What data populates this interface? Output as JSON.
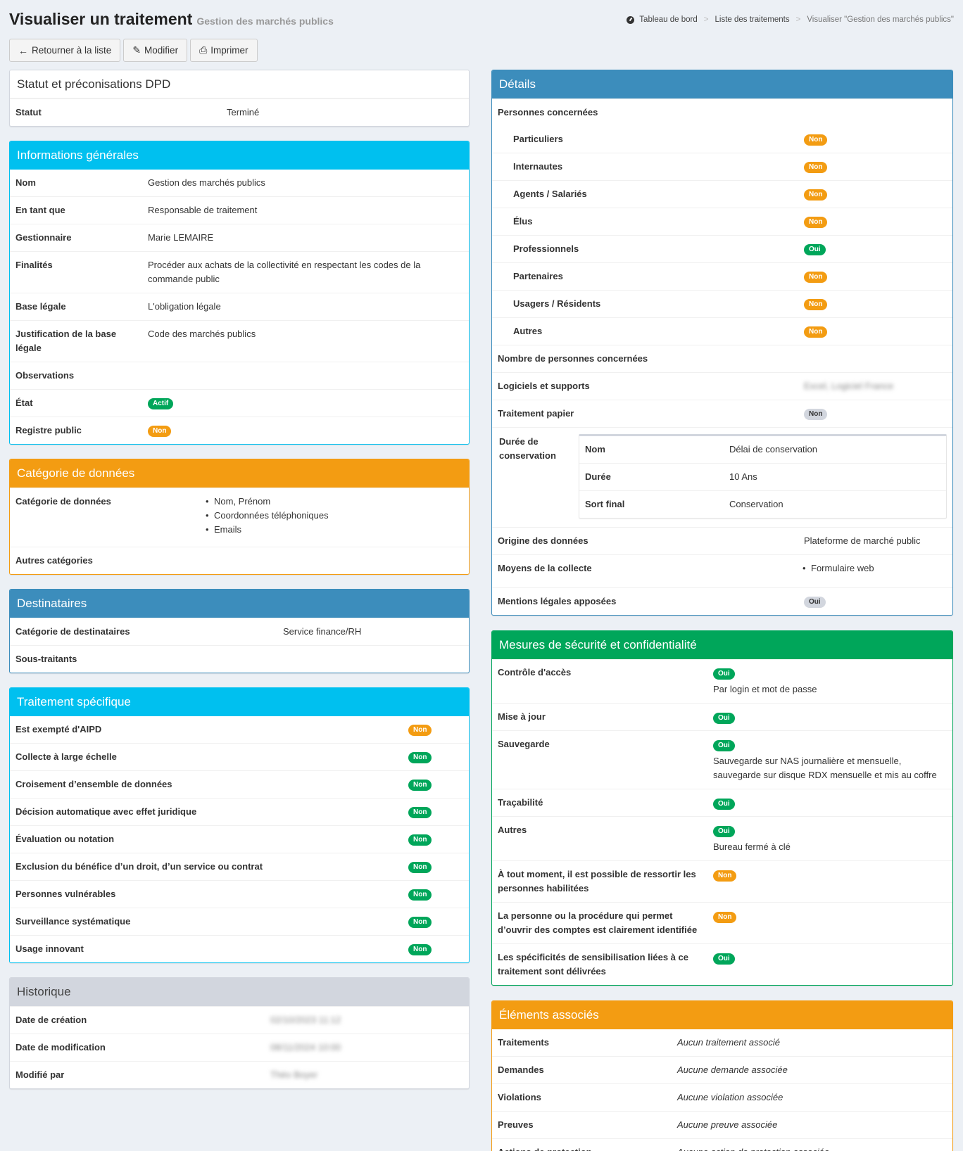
{
  "header": {
    "title": "Visualiser un traitement",
    "subtitle": "Gestion des marchés publics",
    "breadcrumb": [
      "Tableau de bord",
      "Liste des traitements",
      "Visualiser \"Gestion des marchés publics\""
    ]
  },
  "toolbar": {
    "back": "Retourner à la liste",
    "edit": "Modifier",
    "print": "Imprimer"
  },
  "status_box": {
    "title": "Statut et préconisations DPD",
    "status_label": "Statut",
    "status_value": "Terminé"
  },
  "general": {
    "title": "Informations générales",
    "rows": [
      {
        "label": "Nom",
        "value": "Gestion des marchés publics"
      },
      {
        "label": "En tant que",
        "value": "Responsable de traitement"
      },
      {
        "label": "Gestionnaire",
        "value": "Marie LEMAIRE"
      },
      {
        "label": "Finalités",
        "value": "Procéder aux achats de la collectivité en respectant les codes de la commande public"
      },
      {
        "label": "Base légale",
        "value": "L'obligation légale"
      },
      {
        "label": "Justification de la base légale",
        "value": "Code des marchés publics"
      },
      {
        "label": "Observations",
        "value": ""
      }
    ],
    "etat_label": "État",
    "etat_badge": "Actif",
    "registre_label": "Registre public",
    "registre_badge": "Non"
  },
  "categories": {
    "title": "Catégorie de données",
    "cat_label": "Catégorie de données",
    "items": [
      "Nom, Prénom",
      "Coordonnées téléphoniques",
      "Emails"
    ],
    "other_label": "Autres catégories"
  },
  "recipients": {
    "title": "Destinataires",
    "cat_label": "Catégorie de destinataires",
    "cat_value": "Service finance/RH",
    "sub_label": "Sous-traitants"
  },
  "specific": {
    "title": "Traitement spécifique",
    "rows": [
      {
        "label": "Est exempté d'AIPD",
        "badge": "Non",
        "color": "orange"
      },
      {
        "label": "Collecte à large échelle",
        "badge": "Non",
        "color": "green"
      },
      {
        "label": "Croisement d’ensemble de données",
        "badge": "Non",
        "color": "green"
      },
      {
        "label": "Décision automatique avec effet juridique",
        "badge": "Non",
        "color": "green"
      },
      {
        "label": "Évaluation ou notation",
        "badge": "Non",
        "color": "green"
      },
      {
        "label": "Exclusion du bénéfice d’un droit, d’un service ou contrat",
        "badge": "Non",
        "color": "green"
      },
      {
        "label": "Personnes vulnérables",
        "badge": "Non",
        "color": "green"
      },
      {
        "label": "Surveillance systématique",
        "badge": "Non",
        "color": "green"
      },
      {
        "label": "Usage innovant",
        "badge": "Non",
        "color": "green"
      }
    ]
  },
  "history": {
    "title": "Historique",
    "rows": [
      {
        "label": "Date de création",
        "value": "02/10/2023 11:12"
      },
      {
        "label": "Date de modification",
        "value": "08/11/2024 10:00"
      },
      {
        "label": "Modifié par",
        "value": "Théo Boyer"
      }
    ]
  },
  "details": {
    "title": "Détails",
    "persons_label": "Personnes concernées",
    "persons": [
      {
        "label": "Particuliers",
        "badge": "Non",
        "color": "orange"
      },
      {
        "label": "Internautes",
        "badge": "Non",
        "color": "orange"
      },
      {
        "label": "Agents / Salariés",
        "badge": "Non",
        "color": "orange"
      },
      {
        "label": "Élus",
        "badge": "Non",
        "color": "orange"
      },
      {
        "label": "Professionnels",
        "badge": "Oui",
        "color": "green"
      },
      {
        "label": "Partenaires",
        "badge": "Non",
        "color": "orange"
      },
      {
        "label": "Usagers / Résidents",
        "badge": "Non",
        "color": "orange"
      },
      {
        "label": "Autres",
        "badge": "Non",
        "color": "orange"
      }
    ],
    "count_label": "Nombre de personnes concernées",
    "software_label": "Logiciels et supports",
    "software_value": "Excel, Logiciel France",
    "paper_label": "Traitement papier",
    "paper_badge": "Non",
    "duration_label": "Durée de conservation",
    "duration": [
      {
        "label": "Nom",
        "value": "Délai de conservation"
      },
      {
        "label": "Durée",
        "value": "10 Ans"
      },
      {
        "label": "Sort final",
        "value": "Conservation"
      }
    ],
    "origin_label": "Origine des données",
    "origin_value": "Plateforme de marché public",
    "means_label": "Moyens de la collecte",
    "means_items": [
      "Formulaire web"
    ],
    "mentions_label": "Mentions légales apposées",
    "mentions_badge": "Oui"
  },
  "security": {
    "title": "Mesures de sécurité et confidentialité",
    "rows": [
      {
        "label": "Contrôle d'accès",
        "badge": "Oui",
        "color": "green",
        "text": "Par login et mot de passe"
      },
      {
        "label": "Mise à jour",
        "badge": "Oui",
        "color": "green",
        "text": ""
      },
      {
        "label": "Sauvegarde",
        "badge": "Oui",
        "color": "green",
        "text": "Sauvegarde sur NAS journalière et mensuelle, sauvegarde sur disque RDX mensuelle et mis au coffre"
      },
      {
        "label": "Traçabilité",
        "badge": "Oui",
        "color": "green",
        "text": ""
      },
      {
        "label": "Autres",
        "badge": "Oui",
        "color": "green",
        "text": "Bureau fermé à clé"
      },
      {
        "label": "À tout moment, il est possible de ressortir les personnes habilitées",
        "badge": "Non",
        "color": "orange",
        "text": ""
      },
      {
        "label": "La personne ou la procédure qui permet d’ouvrir des comptes est clairement identifiée",
        "badge": "Non",
        "color": "orange",
        "text": ""
      },
      {
        "label": "Les spécificités de sensibilisation liées à ce traitement sont délivrées",
        "badge": "Oui",
        "color": "green",
        "text": ""
      }
    ]
  },
  "associated": {
    "title": "Éléments associés",
    "rows": [
      {
        "label": "Traitements",
        "value": "Aucun traitement associé"
      },
      {
        "label": "Demandes",
        "value": "Aucune demande associée"
      },
      {
        "label": "Violations",
        "value": "Aucune violation associée"
      },
      {
        "label": "Preuves",
        "value": "Aucune preuve associée"
      },
      {
        "label": "Actions de protection",
        "value": "Aucune action de protection associée"
      }
    ]
  }
}
